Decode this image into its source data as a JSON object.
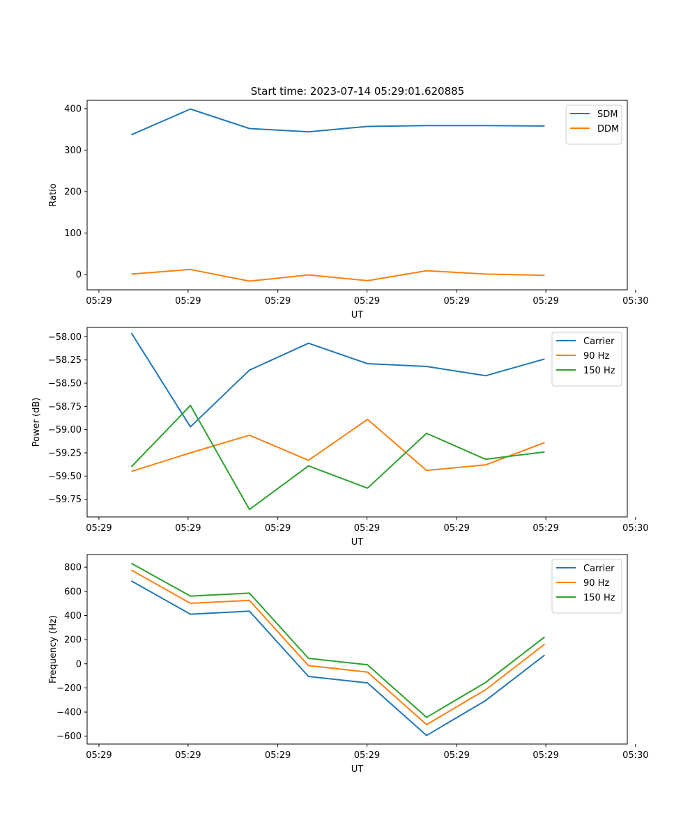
{
  "figure_title": "Start time: 2023-07-14 05:29:01.620885",
  "colors": {
    "blue": "#1f77b4",
    "orange": "#ff7f0e",
    "green": "#2ca02c"
  },
  "chart_data": [
    {
      "type": "line",
      "title": "Start time: 2023-07-14 05:29:01.620885",
      "xlabel": "UT",
      "ylabel": "Ratio",
      "x": [
        1,
        2,
        3,
        4,
        5,
        6,
        7,
        8
      ],
      "xlim": [
        0.25,
        9.4
      ],
      "ylim": [
        -37,
        420
      ],
      "xticks": [
        0.45,
        1.96,
        3.48,
        4.99,
        6.51,
        8.02,
        9.54
      ],
      "xtick_labels": [
        "05:29",
        "05:29",
        "05:29",
        "05:29",
        "05:29",
        "05:29",
        "05:30"
      ],
      "yticks": [
        0,
        100,
        200,
        300,
        400
      ],
      "ytick_labels": [
        "0",
        "100",
        "200",
        "300",
        "400"
      ],
      "legend_position": "top-right",
      "series": [
        {
          "name": "SDM",
          "color": "#1f77b4",
          "values": [
            337,
            399,
            352,
            344,
            357,
            359,
            359,
            358
          ]
        },
        {
          "name": "DDM",
          "color": "#ff7f0e",
          "values": [
            1,
            12,
            -16,
            -1,
            -15,
            9,
            1,
            -2
          ]
        }
      ]
    },
    {
      "type": "line",
      "title": "",
      "xlabel": "UT",
      "ylabel": "Power (dB)",
      "x": [
        1,
        2,
        3,
        4,
        5,
        6,
        7,
        8
      ],
      "xlim": [
        0.25,
        9.4
      ],
      "ylim": [
        -59.94,
        -57.9
      ],
      "xticks": [
        0.45,
        1.96,
        3.48,
        4.99,
        6.51,
        8.02,
        9.54
      ],
      "xtick_labels": [
        "05:29",
        "05:29",
        "05:29",
        "05:29",
        "05:29",
        "05:29",
        "05:30"
      ],
      "yticks": [
        -58.0,
        -58.25,
        -58.5,
        -58.75,
        -59.0,
        -59.25,
        -59.5,
        -59.75
      ],
      "ytick_labels": [
        "−58.00",
        "−58.25",
        "−58.50",
        "−58.75",
        "−59.00",
        "−59.25",
        "−59.50",
        "−59.75"
      ],
      "legend_position": "top-right",
      "series": [
        {
          "name": "Carrier",
          "color": "#1f77b4",
          "values": [
            -57.96,
            -58.97,
            -58.36,
            -58.07,
            -58.29,
            -58.32,
            -58.42,
            -58.24
          ]
        },
        {
          "name": "90 Hz",
          "color": "#ff7f0e",
          "values": [
            -59.45,
            -59.25,
            -59.06,
            -59.33,
            -58.89,
            -59.44,
            -59.38,
            -59.14
          ]
        },
        {
          "name": "150 Hz",
          "color": "#2ca02c",
          "values": [
            -59.4,
            -58.74,
            -59.86,
            -59.39,
            -59.63,
            -59.04,
            -59.32,
            -59.24
          ]
        }
      ]
    },
    {
      "type": "line",
      "title": "",
      "xlabel": "UT",
      "ylabel": "Frequency (Hz)",
      "x": [
        1,
        2,
        3,
        4,
        5,
        6,
        7,
        8
      ],
      "xlim": [
        0.25,
        9.4
      ],
      "ylim": [
        -665,
        905
      ],
      "xticks": [
        0.45,
        1.96,
        3.48,
        4.99,
        6.51,
        8.02,
        9.54
      ],
      "xtick_labels": [
        "05:29",
        "05:29",
        "05:29",
        "05:29",
        "05:29",
        "05:29",
        "05:30"
      ],
      "yticks": [
        -600,
        -400,
        -200,
        0,
        200,
        400,
        600,
        800
      ],
      "ytick_labels": [
        "−600",
        "−400",
        "−200",
        "0",
        "200",
        "400",
        "600",
        "800"
      ],
      "legend_position": "top-right",
      "series": [
        {
          "name": "Carrier",
          "color": "#1f77b4",
          "values": [
            686,
            411,
            436,
            -105,
            -159,
            -594,
            -305,
            72
          ]
        },
        {
          "name": "90 Hz",
          "color": "#ff7f0e",
          "values": [
            777,
            501,
            525,
            -15,
            -69,
            -504,
            -215,
            162
          ]
        },
        {
          "name": "150 Hz",
          "color": "#2ca02c",
          "values": [
            832,
            561,
            585,
            45,
            -9,
            -444,
            -155,
            222
          ]
        }
      ]
    }
  ]
}
